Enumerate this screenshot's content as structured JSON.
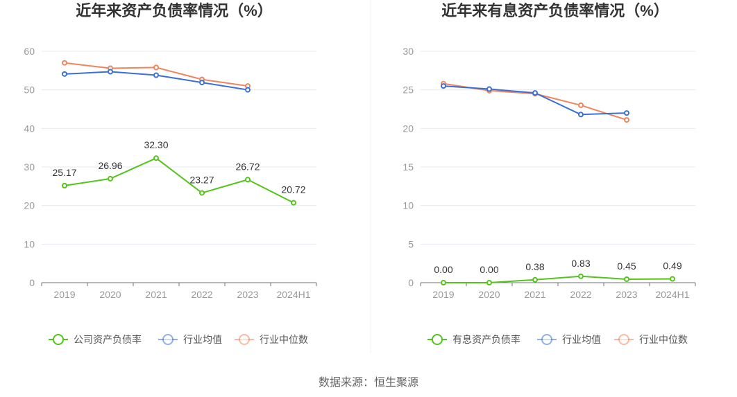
{
  "source_text": "数据来源：恒生聚源",
  "colors": {
    "company": "#52c41a",
    "industry_avg": "#3a70d6",
    "industry_median": "#f0845a"
  },
  "chart_data": [
    {
      "type": "line",
      "title": "近年来资产负债率情况（%）",
      "categories": [
        "2019",
        "2020",
        "2021",
        "2022",
        "2023",
        "2024H1"
      ],
      "ylim": [
        0,
        60
      ],
      "yticks": [
        0,
        10,
        20,
        30,
        40,
        50,
        60
      ],
      "grid": true,
      "legend_position": "bottom",
      "series": [
        {
          "name": "公司资产负债率",
          "color": "#52c41a",
          "labels": true,
          "values": [
            25.17,
            26.96,
            32.3,
            23.27,
            26.72,
            20.72
          ],
          "display": [
            "25.17",
            "26.96",
            "32.30",
            "23.27",
            "26.72",
            "20.72"
          ]
        },
        {
          "name": "行业均值",
          "color": "#3a70d6",
          "labels": false,
          "values": [
            54.1,
            54.7,
            53.8,
            51.9,
            50.0,
            null
          ]
        },
        {
          "name": "行业中位数",
          "color": "#f0845a",
          "labels": false,
          "values": [
            57.0,
            55.6,
            55.8,
            52.7,
            51.0,
            null
          ]
        }
      ]
    },
    {
      "type": "line",
      "title": "近年来有息资产负债率情况（%）",
      "categories": [
        "2019",
        "2020",
        "2021",
        "2022",
        "2023",
        "2024H1"
      ],
      "ylim": [
        0,
        30
      ],
      "yticks": [
        0,
        5,
        10,
        15,
        20,
        25,
        30
      ],
      "grid": true,
      "legend_position": "bottom",
      "series": [
        {
          "name": "有息资产负债率",
          "color": "#52c41a",
          "labels": true,
          "values": [
            0.0,
            0.0,
            0.38,
            0.83,
            0.45,
            0.49
          ],
          "display": [
            "0.00",
            "0.00",
            "0.38",
            "0.83",
            "0.45",
            "0.49"
          ]
        },
        {
          "name": "行业均值",
          "color": "#3a70d6",
          "labels": false,
          "values": [
            25.5,
            25.1,
            24.6,
            21.8,
            22.0,
            null
          ]
        },
        {
          "name": "行业中位数",
          "color": "#f0845a",
          "labels": false,
          "values": [
            25.8,
            24.9,
            24.5,
            23.0,
            21.1,
            null
          ]
        }
      ]
    }
  ]
}
